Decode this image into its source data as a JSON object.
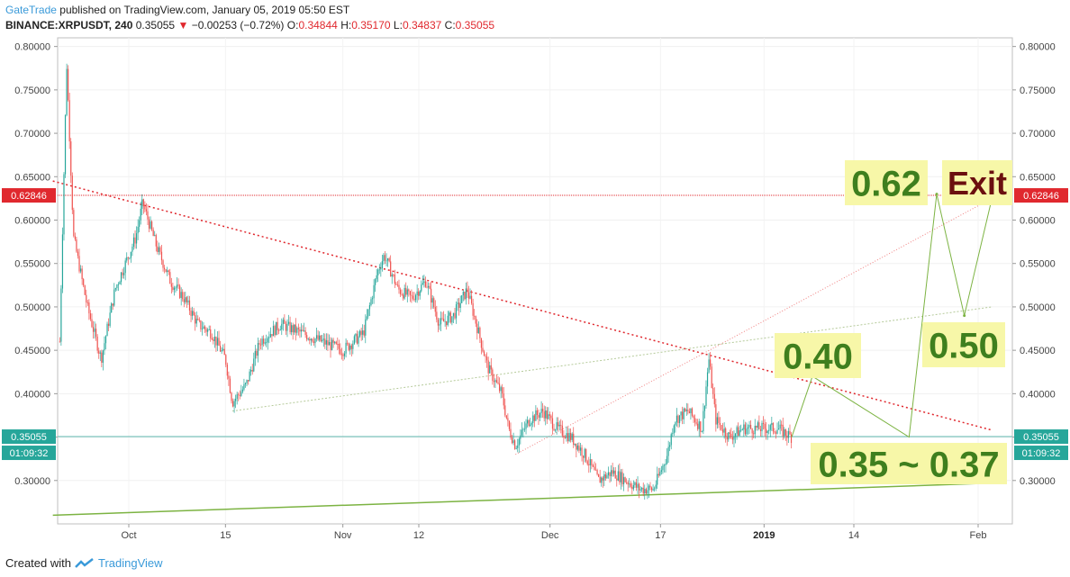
{
  "header": {
    "author": "GateTrade",
    "published": "published on TradingView.com, January 05, 2019 05:50 EST",
    "symbol": "BINANCE:XRPUSDT, 240",
    "last": "0.35055",
    "arrow": "▼",
    "change": "−0.00253 (−0.72%)",
    "o_label": "O:",
    "o": "0.34844",
    "h_label": "H:",
    "h": "0.35170",
    "l_label": "L:",
    "l": "0.34837",
    "c_label": "C:",
    "c": "0.35055"
  },
  "footer": {
    "created": "Created with",
    "brand": "TradingView"
  },
  "colors": {
    "up": "#26a69a",
    "down": "#ef5350",
    "resistance": "#e0282e",
    "trend": "#7cb342",
    "annot_bg": "#f7f7a8",
    "annot_green": "#3f7f1e",
    "annot_exit": "#6b0f0f",
    "price_line": "#5fb8b0"
  },
  "chart_data": {
    "type": "candlestick",
    "symbol": "XRPUSDT",
    "interval": "240",
    "ylim": [
      0.25,
      0.81
    ],
    "yticks": [
      "0.80000",
      "0.75000",
      "0.70000",
      "0.65000",
      "0.60000",
      "0.55000",
      "0.50000",
      "0.45000",
      "0.40000",
      "0.35000",
      "0.30000"
    ],
    "xticks": [
      "Oct",
      "15",
      "Nov",
      "12",
      "Dec",
      "17",
      "2019",
      "14",
      "Feb"
    ],
    "bold_xtick": "2019",
    "price_tags": [
      {
        "value": "0.62846",
        "color": "#e0282e"
      },
      {
        "value": "0.35055",
        "color": "#26a69a"
      },
      {
        "value": "01:09:32",
        "color": "#26a69a"
      }
    ],
    "annotations": [
      {
        "text": "0.62",
        "color": "green"
      },
      {
        "text": "Exit",
        "color": "exit"
      },
      {
        "text": "0.40",
        "color": "green"
      },
      {
        "text": "0.50",
        "color": "green"
      },
      {
        "text": "0.35 ~ 0.37",
        "color": "green"
      }
    ],
    "price_path": [
      [
        "Sep 21",
        0.46
      ],
      [
        "Sep 22",
        0.78
      ],
      [
        "Sep 23",
        0.58
      ],
      [
        "Sep 25",
        0.5
      ],
      [
        "Sep 27",
        0.44
      ],
      [
        "Sep 29",
        0.52
      ],
      [
        "Oct 2",
        0.58
      ],
      [
        "Oct 3",
        0.62
      ],
      [
        "Oct 5",
        0.57
      ],
      [
        "Oct 7",
        0.53
      ],
      [
        "Oct 9",
        0.51
      ],
      [
        "Oct 11",
        0.48
      ],
      [
        "Oct 13",
        0.47
      ],
      [
        "Oct 15",
        0.44
      ],
      [
        "Oct 16",
        0.39
      ],
      [
        "Oct 18",
        0.41
      ],
      [
        "Oct 20",
        0.46
      ],
      [
        "Oct 23",
        0.48
      ],
      [
        "Oct 26",
        0.47
      ],
      [
        "Oct 29",
        0.46
      ],
      [
        "Nov 1",
        0.45
      ],
      [
        "Nov 4",
        0.47
      ],
      [
        "Nov 6",
        0.54
      ],
      [
        "Nov 7",
        0.56
      ],
      [
        "Nov 9",
        0.52
      ],
      [
        "Nov 11",
        0.51
      ],
      [
        "Nov 13",
        0.53
      ],
      [
        "Nov 15",
        0.48
      ],
      [
        "Nov 17",
        0.49
      ],
      [
        "Nov 19",
        0.52
      ],
      [
        "Nov 21",
        0.46
      ],
      [
        "Nov 22",
        0.43
      ],
      [
        "Nov 24",
        0.4
      ],
      [
        "Nov 25",
        0.36
      ],
      [
        "Nov 26",
        0.34
      ],
      [
        "Nov 28",
        0.37
      ],
      [
        "Nov 30",
        0.38
      ],
      [
        "Dec 2",
        0.36
      ],
      [
        "Dec 4",
        0.35
      ],
      [
        "Dec 6",
        0.33
      ],
      [
        "Dec 8",
        0.3
      ],
      [
        "Dec 10",
        0.31
      ],
      [
        "Dec 12",
        0.3
      ],
      [
        "Dec 14",
        0.29
      ],
      [
        "Dec 16",
        0.29
      ],
      [
        "Dec 18",
        0.33
      ],
      [
        "Dec 19",
        0.37
      ],
      [
        "Dec 21",
        0.38
      ],
      [
        "Dec 23",
        0.36
      ],
      [
        "Dec 24",
        0.44
      ],
      [
        "Dec 25",
        0.37
      ],
      [
        "Dec 27",
        0.35
      ],
      [
        "Dec 29",
        0.36
      ],
      [
        "Jan 1",
        0.36
      ],
      [
        "Jan 3",
        0.36
      ],
      [
        "Jan 5",
        0.35
      ]
    ],
    "drawings": [
      {
        "name": "resistance-trendline",
        "style": "dotted",
        "color": "red",
        "from": [
          "Sep 20",
          0.645
        ],
        "to": [
          "Feb 3",
          0.358
        ]
      },
      {
        "name": "rising-red-line",
        "style": "solid-thin",
        "color": "red",
        "from": [
          "Nov 26",
          0.33
        ],
        "to": [
          "Feb 3",
          0.625
        ]
      },
      {
        "name": "upper-green-trendline",
        "style": "dotted",
        "color": "green",
        "from": [
          "Oct 16",
          0.38
        ],
        "to": [
          "Feb 3",
          0.5
        ]
      },
      {
        "name": "lower-green-support",
        "style": "solid",
        "color": "green",
        "from": [
          "Sep 20",
          0.26
        ],
        "to": [
          "Feb 3",
          0.297
        ]
      }
    ]
  }
}
